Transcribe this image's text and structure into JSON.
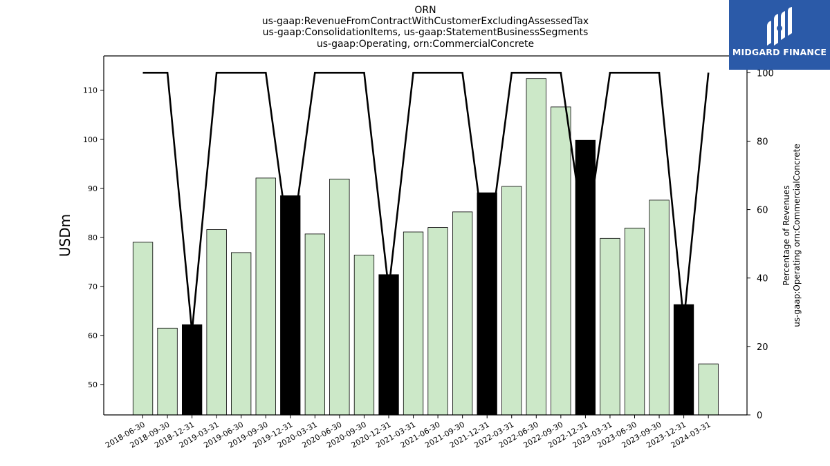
{
  "chart_title": {
    "line1": "ORN",
    "line2": "us-gaap:RevenueFromContractWithCustomerExcludingAssessedTax",
    "line3": "us-gaap:ConsolidationItems, us-gaap:StatementBusinessSegments",
    "line4": "us-gaap:Operating, orn:CommercialConcrete"
  },
  "logo": {
    "text": "MIDGARD FINANCE",
    "icon": "midgard-logo-icon"
  },
  "colors": {
    "bar_default": "#cce8c8",
    "bar_highlight": "#000000",
    "line": "#000000",
    "logo_bg": "#2b5aa8"
  },
  "chart_data": {
    "type": "bar",
    "categories": [
      "2018-06-30",
      "2018-09-30",
      "2018-12-31",
      "2019-03-31",
      "2019-06-30",
      "2019-09-30",
      "2019-12-31",
      "2020-03-31",
      "2020-06-30",
      "2020-09-30",
      "2020-12-31",
      "2021-03-31",
      "2021-06-30",
      "2021-09-30",
      "2021-12-31",
      "2022-03-31",
      "2022-06-30",
      "2022-09-30",
      "2022-12-31",
      "2023-03-31",
      "2023-06-30",
      "2023-09-30",
      "2023-12-31",
      "2024-03-31"
    ],
    "series": [
      {
        "values": [
          79.0,
          61.5,
          62.2,
          81.6,
          76.9,
          92.1,
          88.5,
          80.7,
          91.9,
          76.4,
          72.4,
          81.1,
          82.0,
          85.2,
          89.1,
          90.4,
          112.4,
          106.6,
          99.8,
          79.8,
          81.9,
          87.6,
          66.3,
          54.2
        ],
        "highlight": [
          false,
          false,
          true,
          false,
          false,
          false,
          true,
          false,
          false,
          false,
          true,
          false,
          false,
          false,
          true,
          false,
          false,
          false,
          true,
          false,
          false,
          false,
          true,
          false
        ]
      },
      {
        "values": [
          100,
          100,
          24.3,
          100,
          100,
          100,
          47.0,
          100,
          100,
          100,
          36.6,
          100,
          100,
          100,
          45.1,
          100,
          100,
          100,
          49.9,
          100,
          100,
          100,
          27.3,
          100
        ]
      }
    ],
    "ylabel": "USDm",
    "y2label": [
      "Percentage of Revenues",
      "us-gaap:Operating orn:CommercialConcrete"
    ],
    "ylim": [
      43.8,
      117.0
    ],
    "y2lim": [
      0,
      104.9
    ],
    "yticks": [
      50,
      60,
      70,
      80,
      90,
      100,
      110
    ],
    "y2ticks": [
      0,
      20,
      40,
      60,
      80,
      100
    ],
    "grid": false,
    "legend": "none"
  }
}
